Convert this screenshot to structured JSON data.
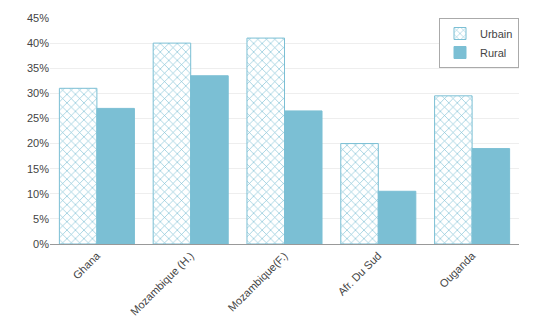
{
  "chart_data": {
    "type": "bar",
    "categories": [
      "Ghana",
      "Mozambique (H.)",
      "Mozambique(F.)",
      "Afr. Du Sud",
      "Ouganda"
    ],
    "series": [
      {
        "name": "Urbain",
        "color": "#7bbfd4",
        "marker": "x",
        "values": [
          0.31,
          0.4,
          0.41,
          0.2,
          0.295
        ]
      },
      {
        "name": "Rural",
        "color": "#7bbfd4",
        "values": [
          0.27,
          0.335,
          0.265,
          0.105,
          0.19
        ]
      }
    ],
    "ylim": [
      0,
      0.45
    ],
    "yticks": [
      {
        "value": 0.0,
        "label": "0%"
      },
      {
        "value": 0.05,
        "label": "5%"
      },
      {
        "value": 0.1,
        "label": "10%"
      },
      {
        "value": 0.15,
        "label": "15%"
      },
      {
        "value": 0.2,
        "label": "20%"
      },
      {
        "value": 0.25,
        "label": "25%"
      },
      {
        "value": 0.3,
        "label": "30%"
      },
      {
        "value": 0.35,
        "label": "35%"
      },
      {
        "value": 0.4,
        "label": "40%"
      },
      {
        "value": 0.45,
        "label": "45%"
      }
    ],
    "grid": true,
    "legend": "upper right"
  }
}
